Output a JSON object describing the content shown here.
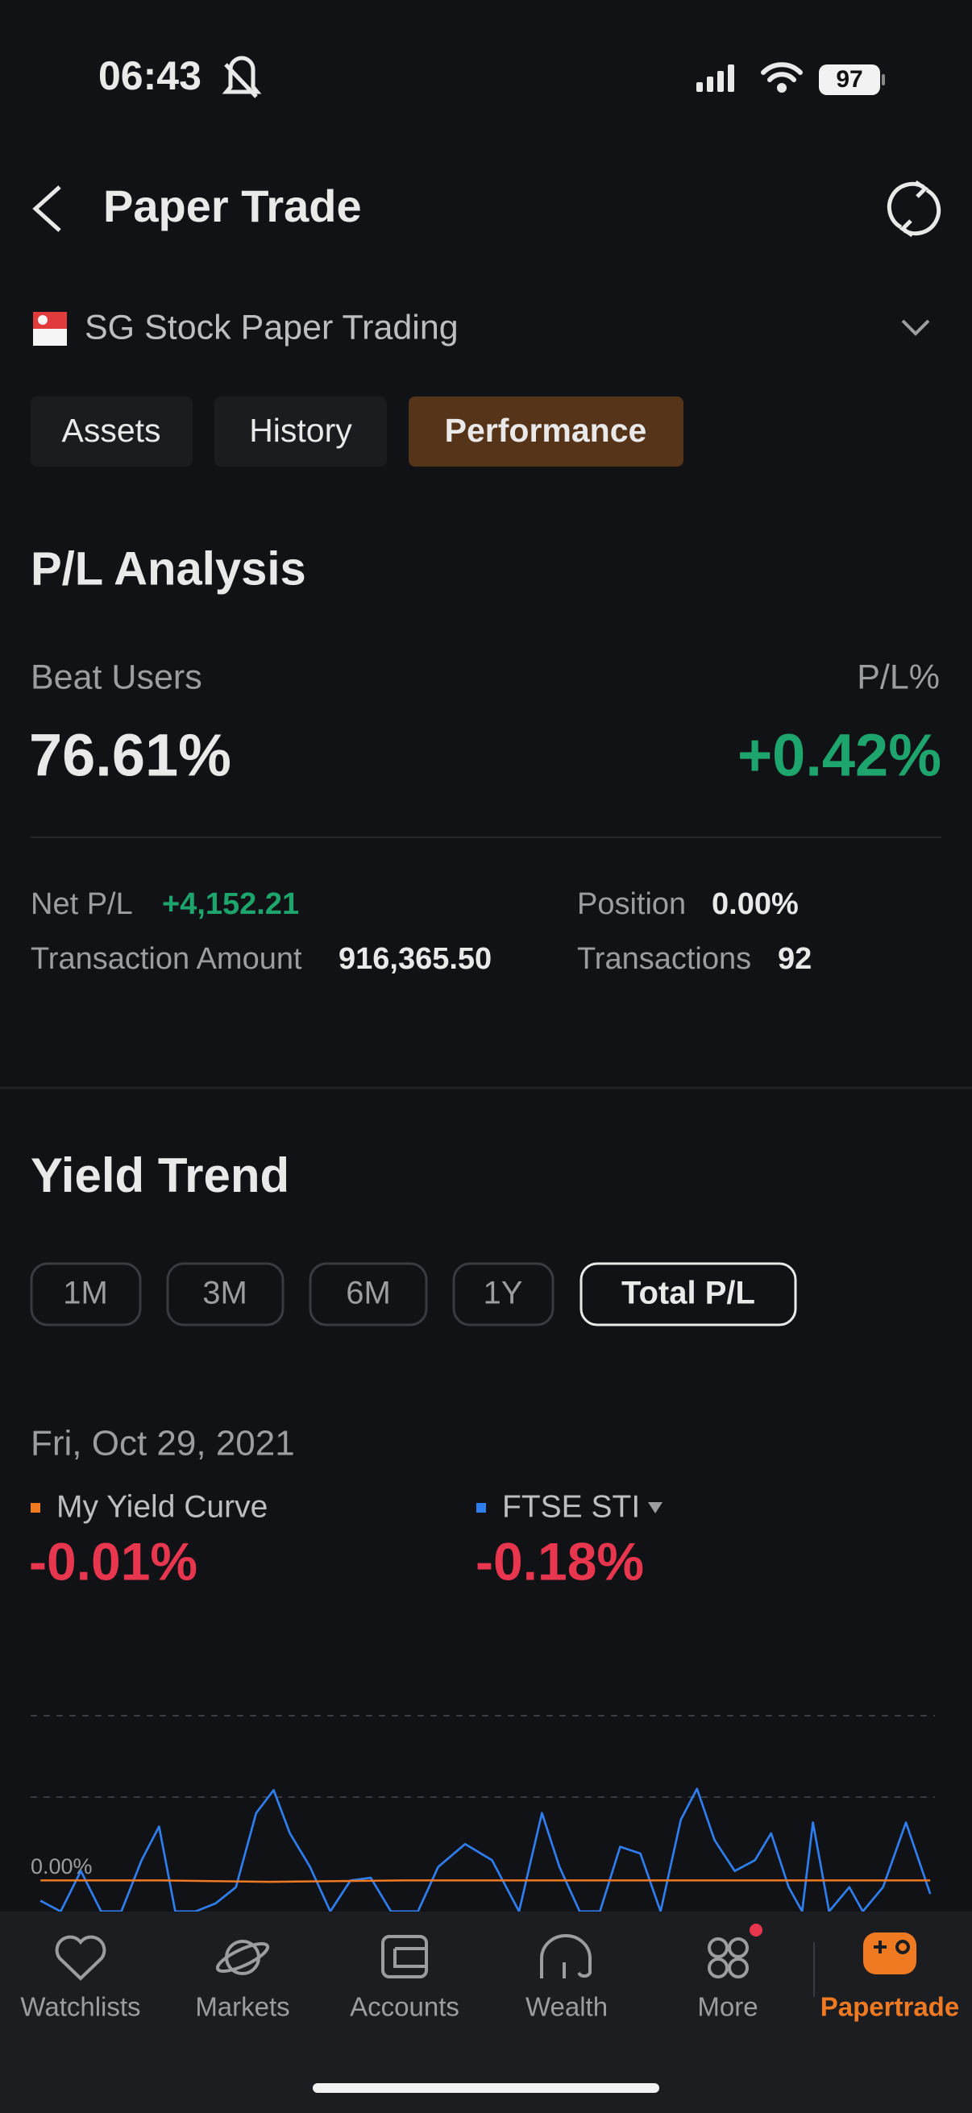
{
  "status_bar": {
    "time": "06:43",
    "battery": "97"
  },
  "header": {
    "title": "Paper Trade"
  },
  "account": {
    "name": "SG Stock Paper Trading"
  },
  "tabs": [
    "Assets",
    "History",
    "Performance"
  ],
  "pl_analysis": {
    "title": "P/L Analysis",
    "beat_users_label": "Beat Users",
    "beat_users_value": "76.61%",
    "pl_percent_label": "P/L%",
    "pl_percent_value": "+0.42%",
    "net_pl_label": "Net P/L",
    "net_pl_value": "+4,152.21",
    "transaction_amount_label": "Transaction Amount",
    "transaction_amount_value": "916,365.50",
    "position_label": "Position",
    "position_value": "0.00%",
    "transactions_label": "Transactions",
    "transactions_value": "92"
  },
  "yield_trend": {
    "title": "Yield Trend",
    "periods": [
      "1M",
      "3M",
      "6M",
      "1Y",
      "Total P/L"
    ],
    "date": "Fri, Oct 29, 2021",
    "legend": [
      {
        "label": "My Yield Curve",
        "value": "-0.01%"
      },
      {
        "label": "FTSE STI",
        "value": "-0.18%"
      }
    ],
    "axis_label": "0.00%"
  },
  "nav": [
    "Watchlists",
    "Markets",
    "Accounts",
    "Wealth",
    "More",
    "Papertrade"
  ]
}
